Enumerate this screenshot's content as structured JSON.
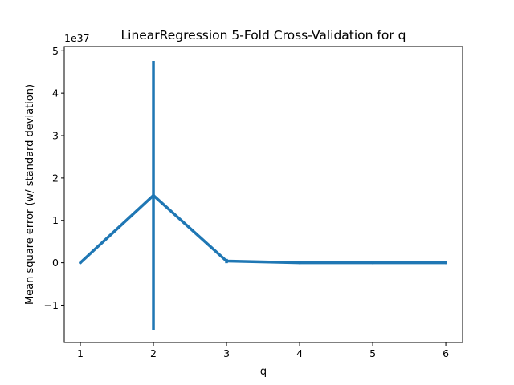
{
  "chart_data": {
    "type": "line",
    "title": "LinearRegression 5-Fold Cross-Validation for q",
    "xlabel": "q",
    "ylabel": "Mean square error (w/ standard deviation)",
    "y_scale_label": "1e37",
    "y_scale_factor": 1e+37,
    "xlim": [
      0.78,
      6.23
    ],
    "ylim": [
      -1.88,
      5.1
    ],
    "x_ticks": [
      1,
      2,
      3,
      4,
      5,
      6
    ],
    "x_tick_labels": [
      "1",
      "2",
      "3",
      "4",
      "5",
      "6"
    ],
    "y_ticks": [
      -1,
      0,
      1,
      2,
      3,
      4,
      5
    ],
    "y_tick_labels": [
      "−1",
      "0",
      "1",
      "2",
      "3",
      "4",
      "5"
    ],
    "grid": false,
    "series": [
      {
        "color": "#1f77b4",
        "x": [
          1,
          2,
          3,
          4,
          5,
          6
        ],
        "y": [
          0.0,
          1.59,
          0.04,
          0.0,
          0.0,
          0.0
        ],
        "yerr": [
          0.0,
          3.17,
          0.05,
          0.0,
          0.0,
          0.0
        ]
      }
    ]
  }
}
